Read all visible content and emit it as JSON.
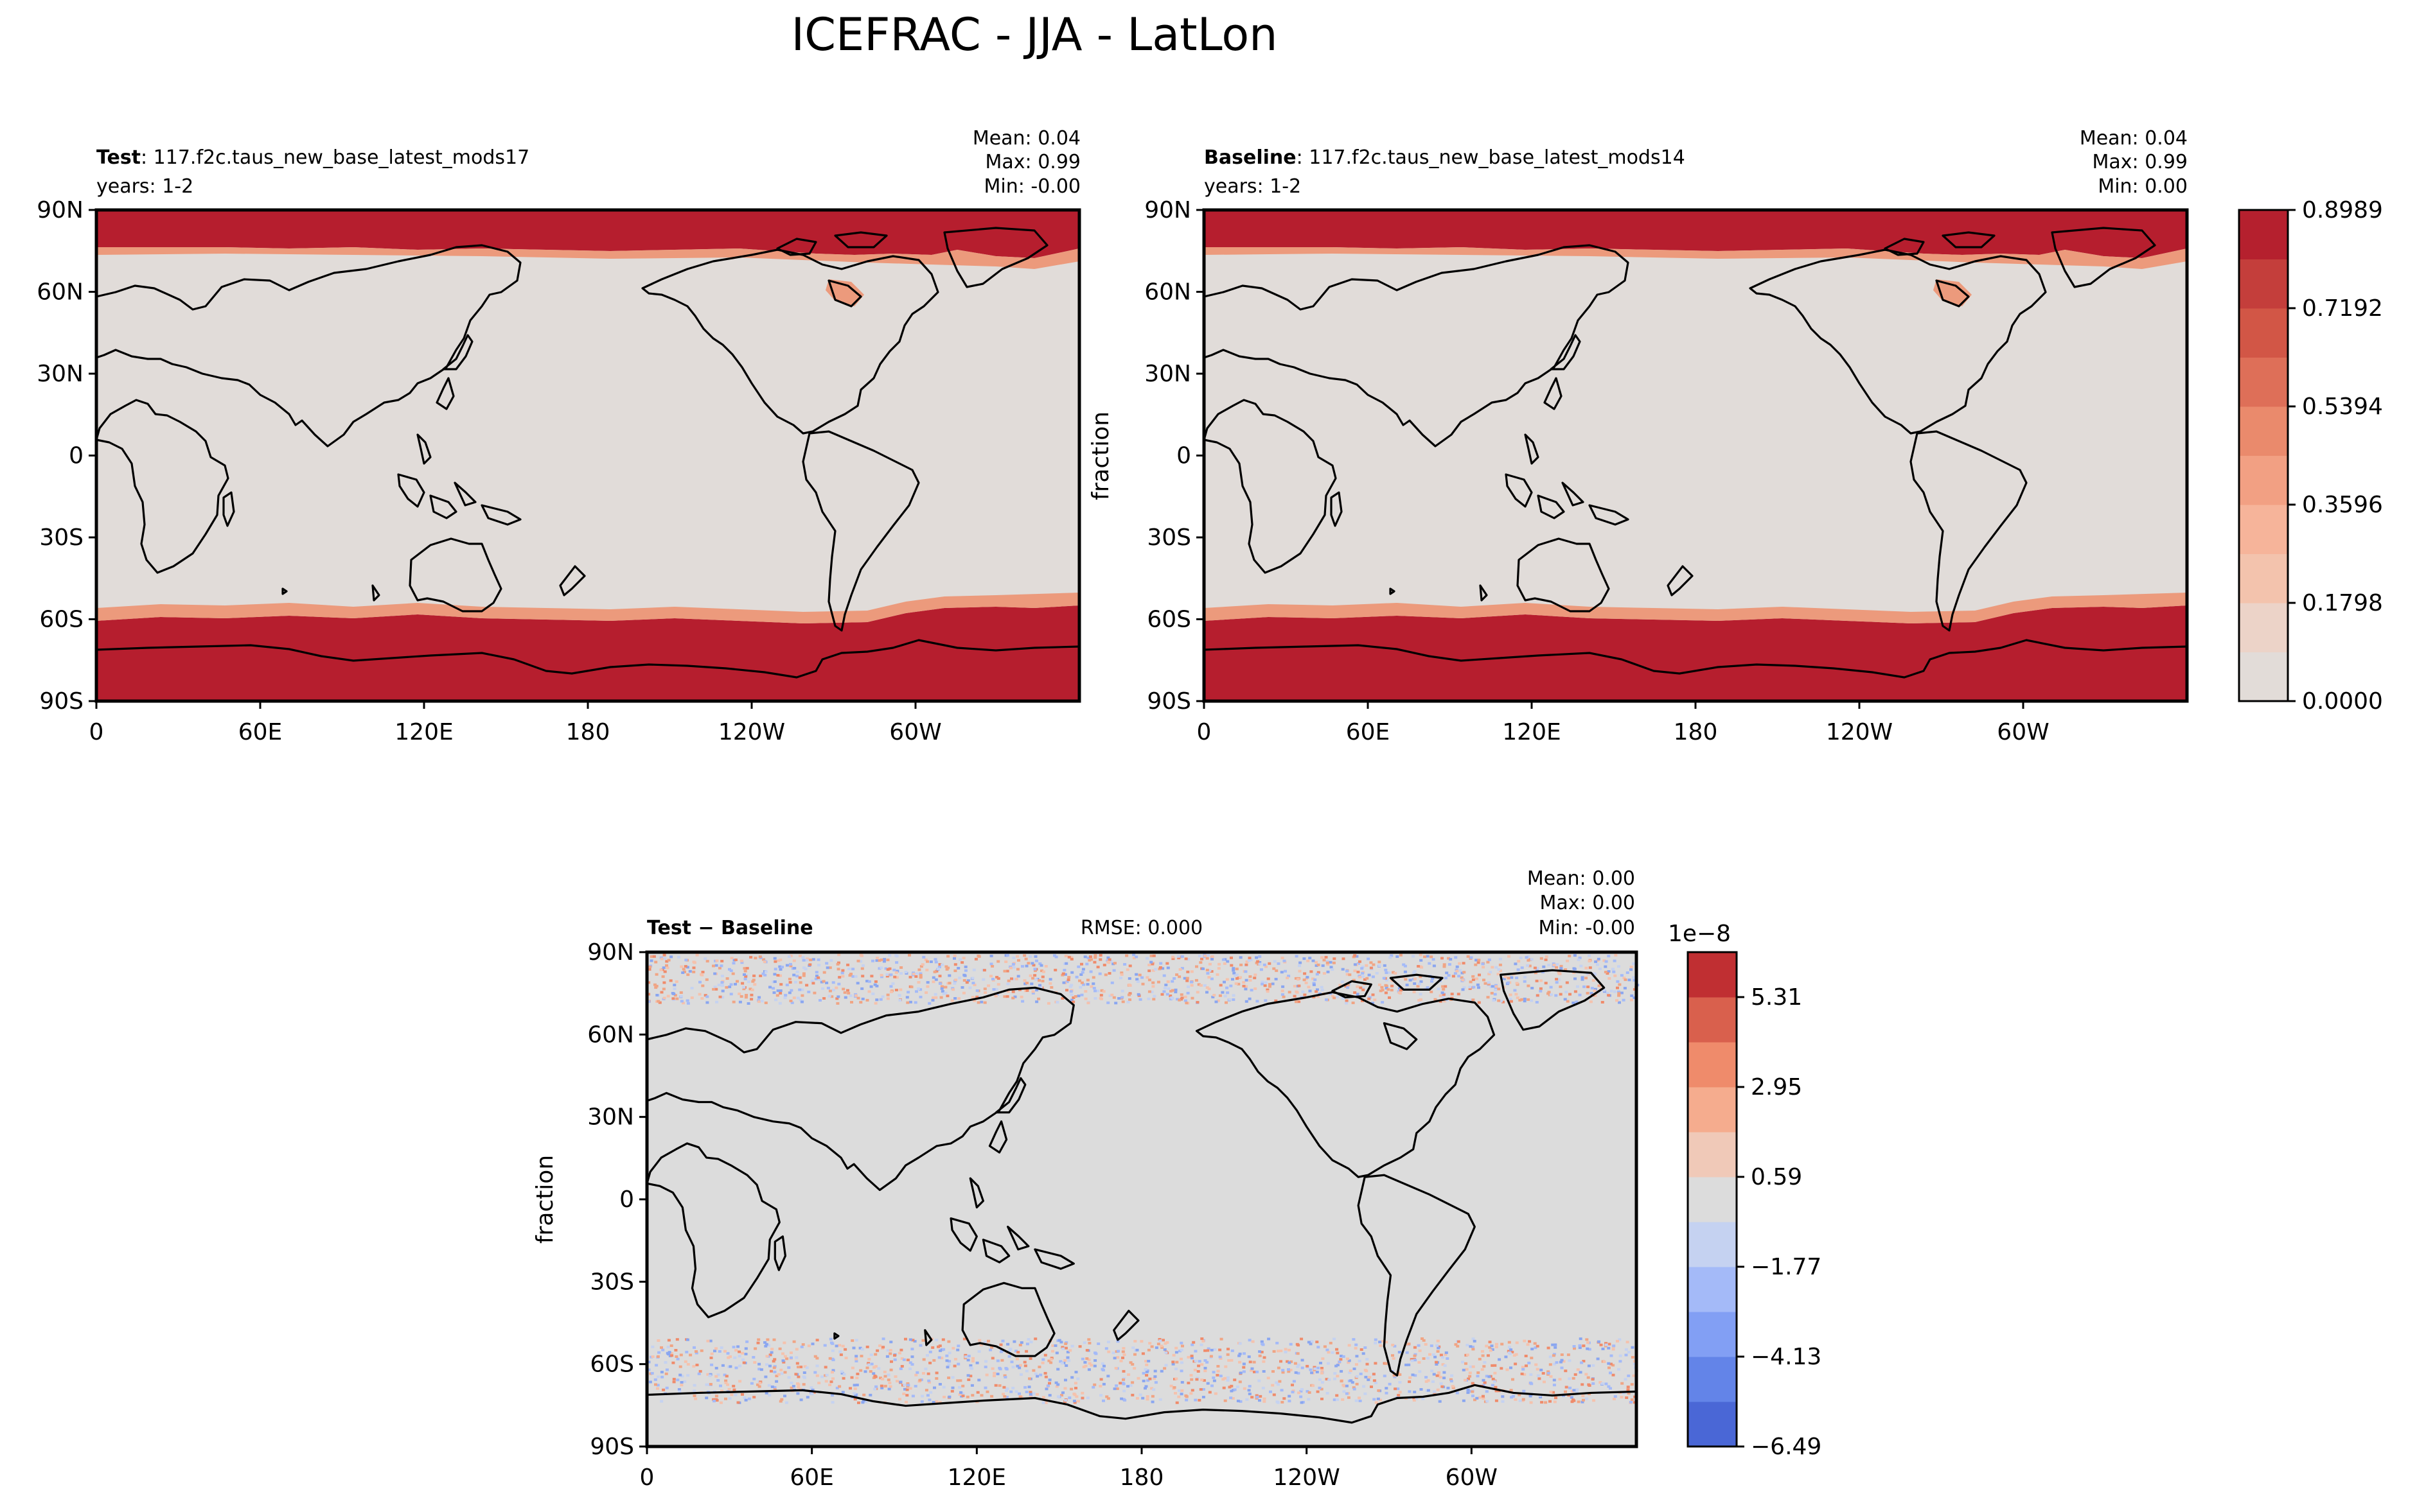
{
  "title": "ICEFRAC - JJA - LatLon",
  "lon_ticks": [
    "0",
    "60E",
    "120E",
    "180",
    "120W",
    "60W"
  ],
  "lat_ticks": [
    "90N",
    "60N",
    "30N",
    "0",
    "30S",
    "60S",
    "90S"
  ],
  "panels": {
    "test": {
      "label_bold": "Test",
      "label_rest": ": 117.f2c.taus_new_base_latest_mods17",
      "years": "years: 1-2",
      "stats": [
        "Mean:  0.04",
        "Max:  0.99",
        "Min: -0.00"
      ]
    },
    "baseline": {
      "label_bold": "Baseline",
      "label_rest": ": 117.f2c.taus_new_base_latest_mods14",
      "years": "years: 1-2",
      "ylabel": "fraction",
      "stats": [
        "Mean:  0.04",
        "Max:  0.99",
        "Min:  0.00"
      ]
    },
    "diff": {
      "label": "Test − Baseline",
      "rmse": "RMSE: 0.000",
      "ylabel": "fraction",
      "stats": [
        "Mean:  0.00",
        "Max:  0.00",
        "Min: -0.00"
      ]
    }
  },
  "colorbar_top": {
    "ticks": [
      "0.0000",
      "0.1798",
      "0.3596",
      "0.5394",
      "0.7192",
      "0.8989"
    ],
    "colors": [
      "#e2dcd8",
      "#ecd3c8",
      "#f3c3ad",
      "#f6b49a",
      "#f2a083",
      "#ea8a6c",
      "#de6f58",
      "#d25646",
      "#c43e3b",
      "#b5202e"
    ]
  },
  "colorbar_diff": {
    "offset": "1e−8",
    "ticks": [
      "−6.49",
      "−4.13",
      "−1.77",
      "0.59",
      "2.95",
      "5.31"
    ],
    "colors": [
      "#4a67d6",
      "#6384e8",
      "#829ff4",
      "#a4baf8",
      "#c5d2f1",
      "#dcdcdc",
      "#f0c9b8",
      "#f5ac8e",
      "#ef8b6b",
      "#d9604d",
      "#c02f32"
    ]
  },
  "colors": {
    "ocean_fill": "#e1dcd9",
    "ice": "#b61e2e",
    "ice_edge": "#ec9a7c",
    "diff_fill": "#dcdcdc",
    "coast": "#000000"
  }
}
